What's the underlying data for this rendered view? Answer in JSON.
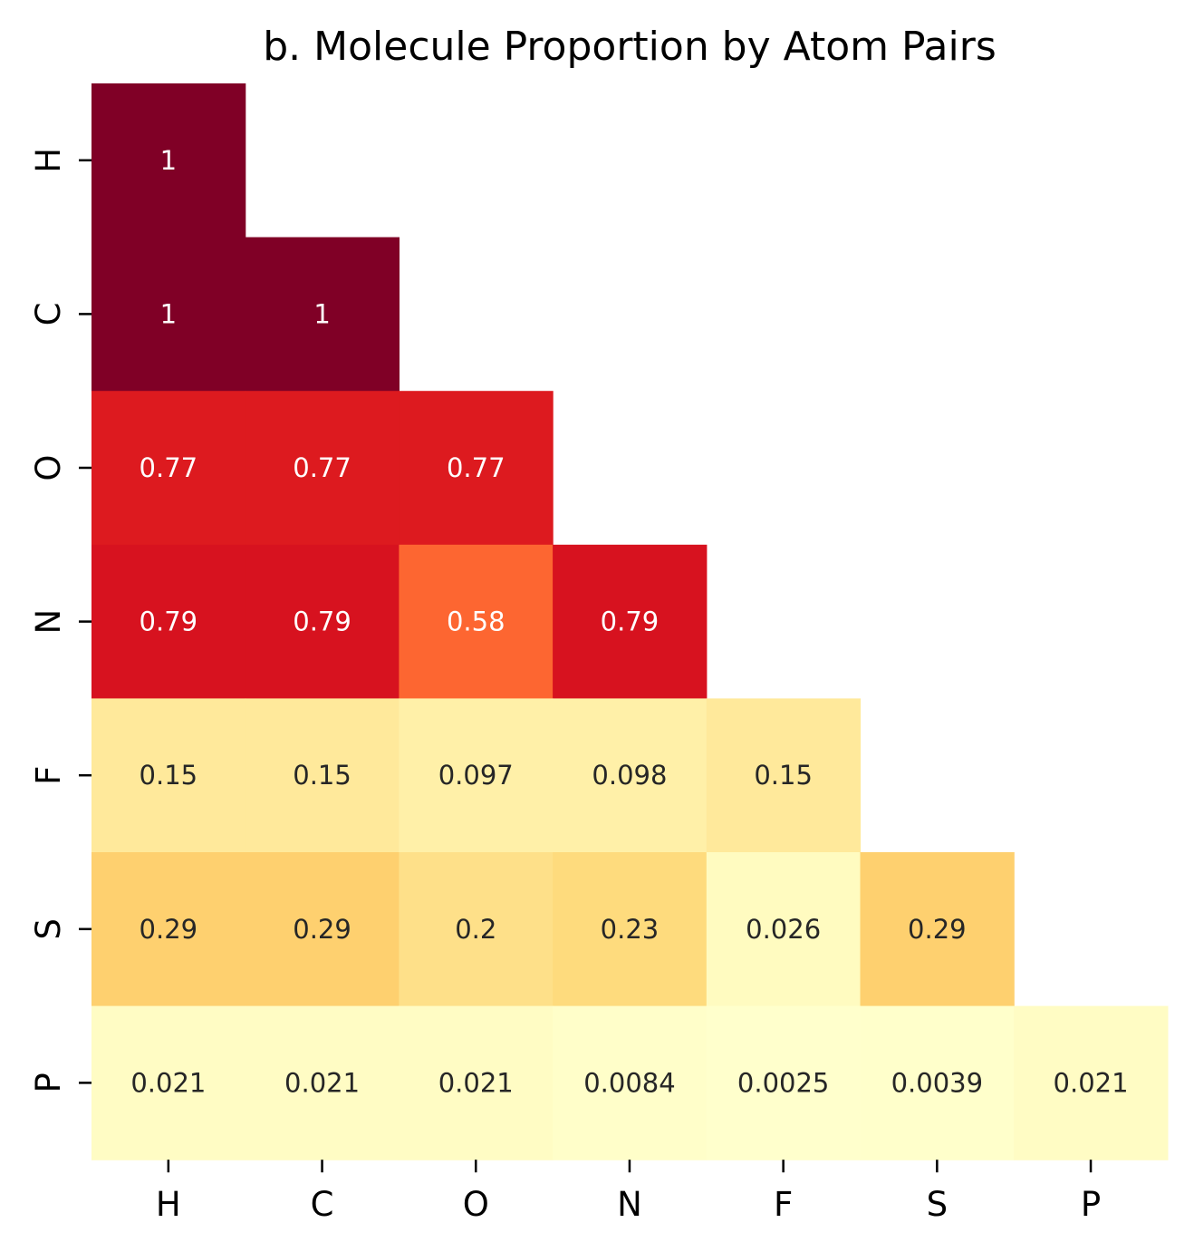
{
  "chart_data": {
    "type": "heatmap",
    "title": "b. Molecule Proportion by Atom Pairs",
    "x_labels": [
      "H",
      "C",
      "O",
      "N",
      "F",
      "S",
      "P"
    ],
    "y_labels": [
      "H",
      "C",
      "O",
      "N",
      "F",
      "S",
      "P"
    ],
    "mask": "upper-triangle",
    "colormap": "YlOrRd",
    "colorbar": false,
    "values": [
      [
        1,
        null,
        null,
        null,
        null,
        null,
        null
      ],
      [
        1,
        1,
        null,
        null,
        null,
        null,
        null
      ],
      [
        0.77,
        0.77,
        0.77,
        null,
        null,
        null,
        null
      ],
      [
        0.79,
        0.79,
        0.58,
        0.79,
        null,
        null,
        null
      ],
      [
        0.15,
        0.15,
        0.097,
        0.098,
        0.15,
        null,
        null
      ],
      [
        0.29,
        0.29,
        0.2,
        0.23,
        0.026,
        0.29,
        null
      ],
      [
        0.021,
        0.021,
        0.021,
        0.0084,
        0.0025,
        0.0039,
        0.021
      ]
    ],
    "annotations": [
      [
        "1",
        null,
        null,
        null,
        null,
        null,
        null
      ],
      [
        "1",
        "1",
        null,
        null,
        null,
        null,
        null
      ],
      [
        "0.77",
        "0.77",
        "0.77",
        null,
        null,
        null,
        null
      ],
      [
        "0.79",
        "0.79",
        "0.58",
        "0.79",
        null,
        null,
        null
      ],
      [
        "0.15",
        "0.15",
        "0.097",
        "0.098",
        "0.15",
        null,
        null
      ],
      [
        "0.29",
        "0.29",
        "0.2",
        "0.23",
        "0.026",
        "0.29",
        null
      ],
      [
        "0.021",
        "0.021",
        "0.021",
        "0.0084",
        "0.0025",
        "0.0039",
        "0.021"
      ]
    ],
    "cell_colors": [
      [
        "#800026",
        null,
        null,
        null,
        null,
        null,
        null
      ],
      [
        "#800026",
        "#800026",
        null,
        null,
        null,
        null,
        null
      ],
      [
        "#dd1a1f",
        "#dd1a1f",
        "#dd1a1f",
        null,
        null,
        null,
        null
      ],
      [
        "#d7121f",
        "#d7121f",
        "#fd6631",
        "#d7121f",
        null,
        null,
        null
      ],
      [
        "#ffe99b",
        "#ffe99b",
        "#fff0a8",
        "#fff0a8",
        "#ffe99b",
        null,
        null
      ],
      [
        "#fed06f",
        "#fed06f",
        "#fee089",
        "#fedb7d",
        "#fffbc0",
        "#fed06f",
        null
      ],
      [
        "#fffcc4",
        "#fffcc4",
        "#fffcc4",
        "#fffec9",
        "#ffffcc",
        "#ffffcb",
        "#fffcc4"
      ]
    ],
    "text_colors": {
      "dark_cell": "#ffffff",
      "light_cell": "#262626"
    }
  }
}
